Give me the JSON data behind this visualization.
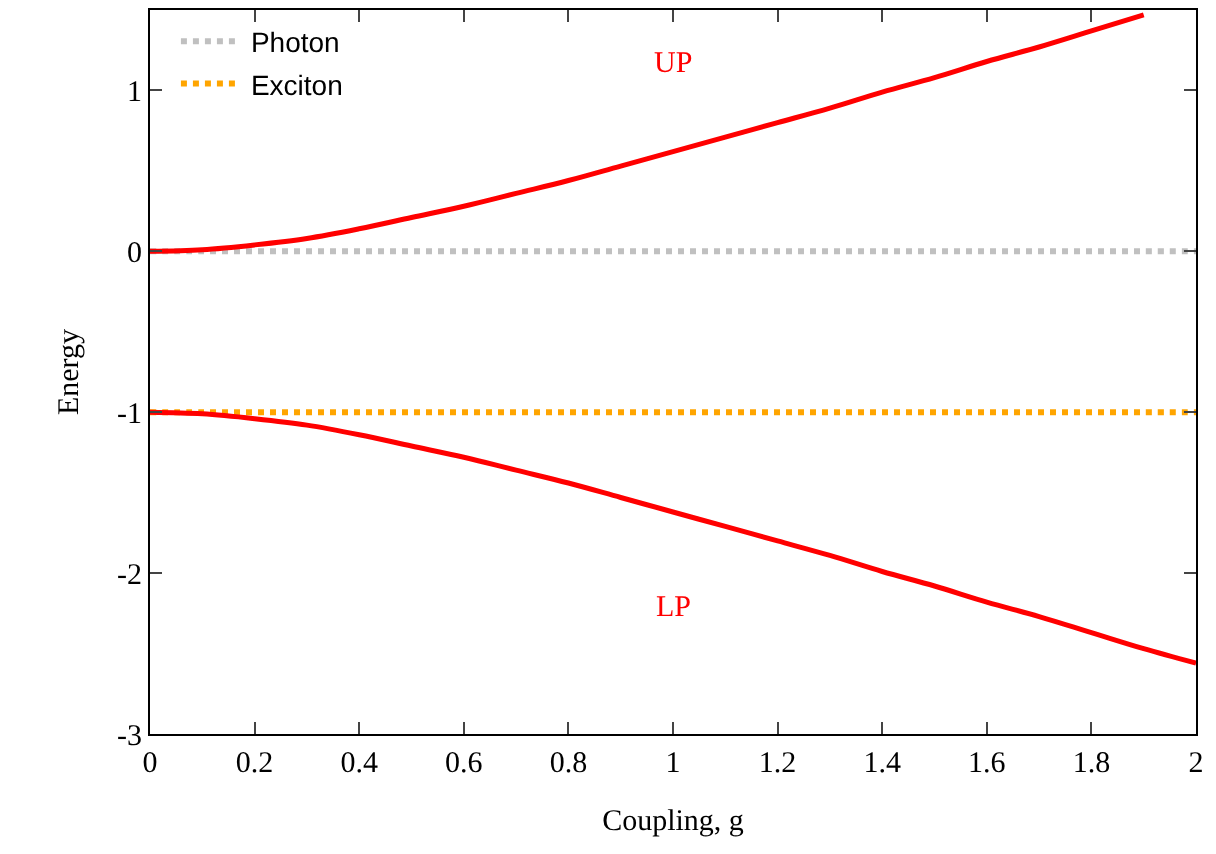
{
  "chart_data": {
    "type": "line",
    "xlabel": "Coupling, g",
    "ylabel": "Energy",
    "x": [
      0,
      0.1,
      0.2,
      0.3,
      0.4,
      0.5,
      0.6,
      0.7,
      0.8,
      0.9,
      1.0,
      1.1,
      1.2,
      1.3,
      1.4,
      1.5,
      1.6,
      1.7,
      1.8,
      1.9,
      2.0
    ],
    "series": [
      {
        "name": "Photon",
        "color": "#c0c0c0",
        "line_style": "dotted",
        "values": [
          0,
          0,
          0,
          0,
          0,
          0,
          0,
          0,
          0,
          0,
          0,
          0,
          0,
          0,
          0,
          0,
          0,
          0,
          0,
          0,
          0
        ]
      },
      {
        "name": "Exciton",
        "color": "#ffa500",
        "line_style": "dotted",
        "values": [
          -1,
          -1,
          -1,
          -1,
          -1,
          -1,
          -1,
          -1,
          -1,
          -1,
          -1,
          -1,
          -1,
          -1,
          -1,
          -1,
          -1,
          -1,
          -1,
          -1,
          -1
        ]
      },
      {
        "name": "UP",
        "color": "#ff0000",
        "line_style": "solid",
        "values": [
          0,
          0.01,
          0.04,
          0.08,
          0.14,
          0.21,
          0.28,
          0.36,
          0.44,
          0.53,
          0.62,
          0.71,
          0.8,
          0.89,
          0.99,
          1.08,
          1.18,
          1.27,
          1.37,
          1.47,
          null
        ]
      },
      {
        "name": "LP",
        "color": "#ff0000",
        "line_style": "solid",
        "values": [
          -1,
          -1.01,
          -1.04,
          -1.08,
          -1.14,
          -1.21,
          -1.28,
          -1.36,
          -1.44,
          -1.53,
          -1.62,
          -1.71,
          -1.8,
          -1.89,
          -1.99,
          -2.08,
          -2.18,
          -2.27,
          -2.37,
          -2.47,
          -2.56
        ]
      }
    ],
    "xlim": [
      0,
      2
    ],
    "xticks": [
      0,
      0.2,
      0.4,
      0.6,
      0.8,
      1,
      1.2,
      1.4,
      1.6,
      1.8,
      2
    ],
    "ylim": [
      -3,
      1.5
    ],
    "yticks": [
      -3,
      -2,
      -1,
      0,
      1
    ],
    "legend": "top left",
    "marker": "none"
  }
}
